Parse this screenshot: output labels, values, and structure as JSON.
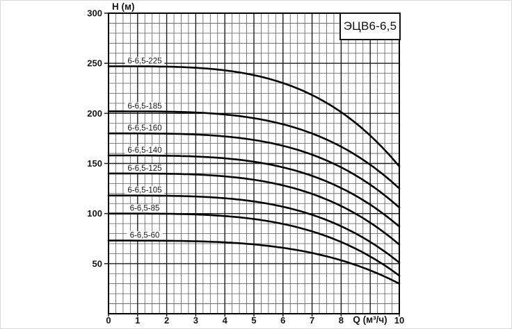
{
  "title_box": {
    "text": "ЭЦВ6-6,5"
  },
  "chart_data": {
    "type": "line",
    "title": "ЭЦВ6-6,5",
    "xlabel": "Q (м³/ч)",
    "ylabel": "H (м)",
    "xlim": [
      0,
      10
    ],
    "ylim": [
      0,
      300
    ],
    "grid": "on",
    "legend_position": "labels-above-curves",
    "x_major_step": 1,
    "x_minor_step": 0.25,
    "y_major_step": 50,
    "y_minor_step": 10,
    "x_tick_labels": [
      "0",
      "1",
      "2",
      "3",
      "4",
      "5",
      "6",
      "7",
      "8",
      "10"
    ],
    "y_tick_labels": [
      "50",
      "100",
      "150",
      "200",
      "250",
      "300"
    ],
    "curve_shape_exponent": 3.5,
    "x_sample": [
      0,
      2,
      4,
      6,
      8,
      10
    ],
    "series": [
      {
        "name": "6-6,5-225",
        "h_start": 247,
        "h_end": 147,
        "h": [
          247,
          246.6,
          242.9,
          230.3,
          201.2,
          147
        ]
      },
      {
        "name": "6-6,5-185",
        "h_start": 202,
        "h_end": 125,
        "h": [
          202,
          201.7,
          198.9,
          189.1,
          166.7,
          125
        ]
      },
      {
        "name": "6-6,5-160",
        "h_start": 180,
        "h_end": 106,
        "h": [
          180,
          179.7,
          177.0,
          167.6,
          146.1,
          106
        ]
      },
      {
        "name": "6-6,5-140",
        "h_start": 158,
        "h_end": 87,
        "h": [
          158,
          157.7,
          155.1,
          146.1,
          125.5,
          87
        ]
      },
      {
        "name": "6-6,5-125",
        "h_start": 140,
        "h_end": 69,
        "h": [
          140,
          139.7,
          137.1,
          128.1,
          107.5,
          69
        ]
      },
      {
        "name": "6-6,5-105",
        "h_start": 118,
        "h_end": 51,
        "h": [
          118,
          117.8,
          115.3,
          106.8,
          87.3,
          51
        ]
      },
      {
        "name": "6-6,5-85",
        "h_start": 100,
        "h_end": 38,
        "h": [
          100,
          99.8,
          97.5,
          89.6,
          71.6,
          38
        ]
      },
      {
        "name": "6-6,5-60",
        "h_start": 73,
        "h_end": 30,
        "h": [
          73,
          72.8,
          71.3,
          65.8,
          53.3,
          30
        ]
      }
    ],
    "colors": {
      "curve": "#000000",
      "grid_minor": "#5a5a5a",
      "grid_major": "#1c1c1c",
      "frame": "#000000",
      "text": "#151515",
      "label_bg": "#ffffff"
    }
  }
}
